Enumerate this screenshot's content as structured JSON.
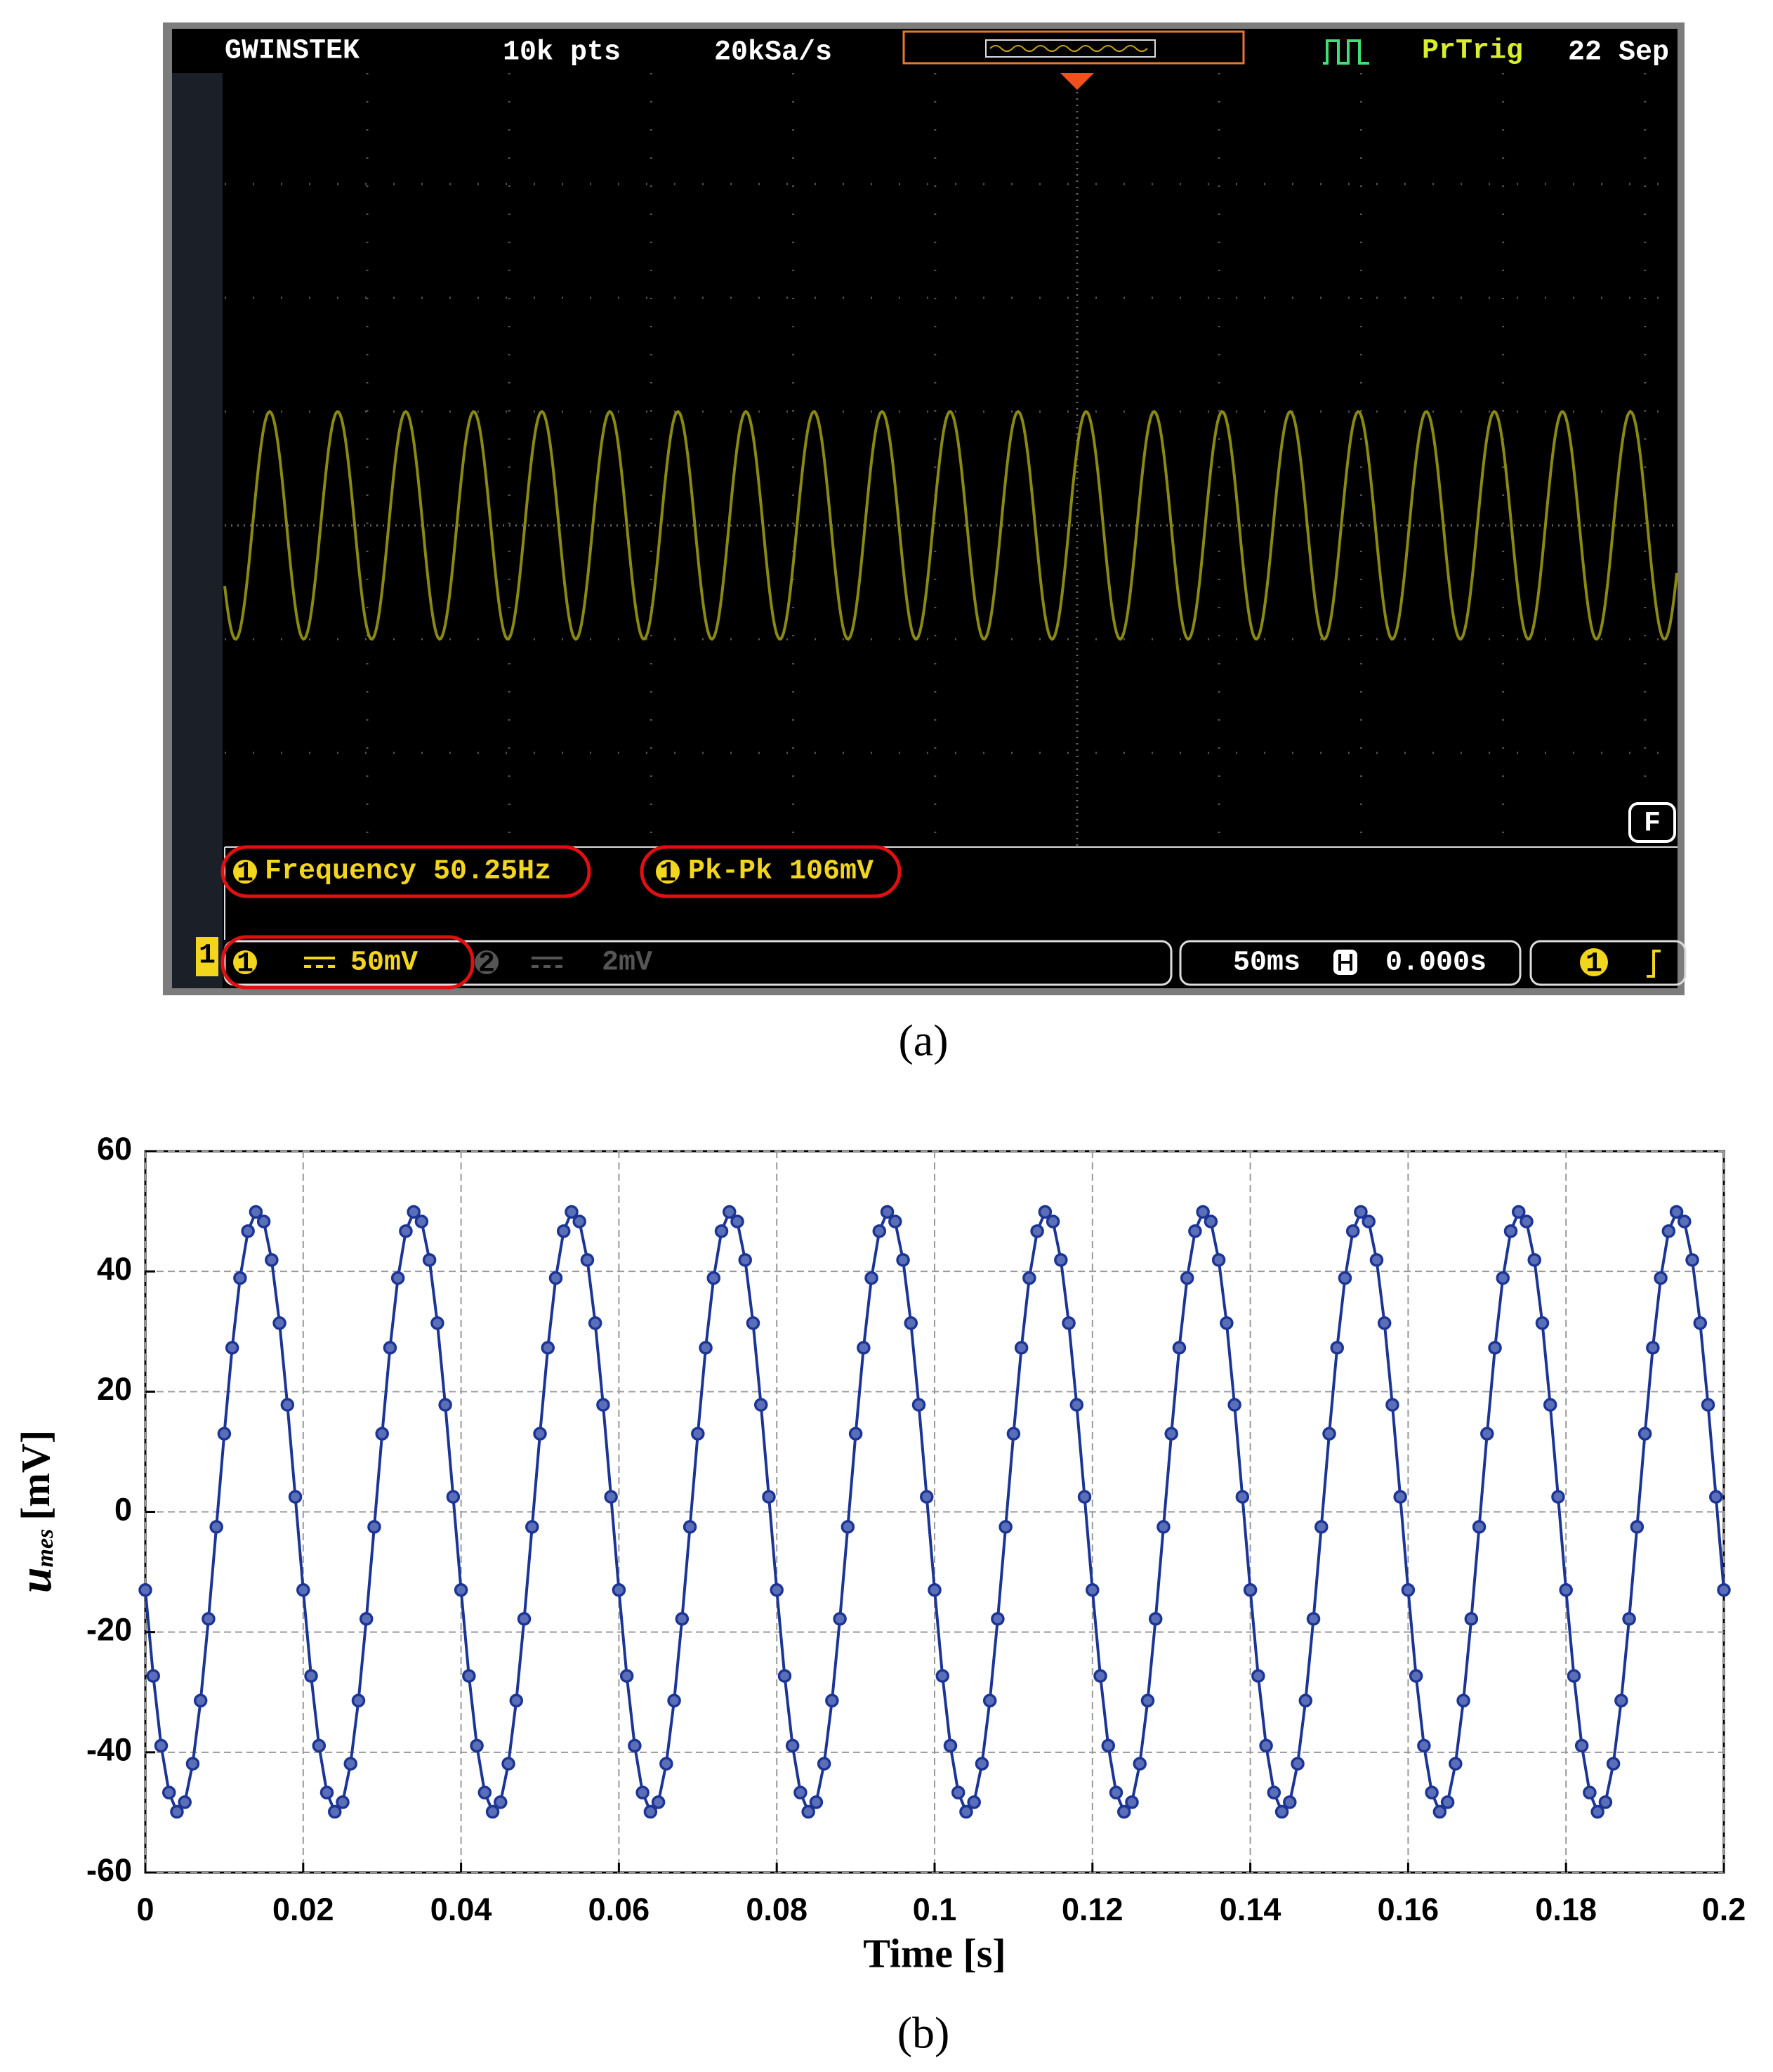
{
  "panel_a": {
    "brand": "GWINSTEK",
    "record_length": "10k pts",
    "sample_rate": "20kSa/s",
    "trigger_state": "PrTrig",
    "date": "22 Sep",
    "mode": "F",
    "measurements": [
      {
        "channel": "1",
        "label": "Frequency 50.25Hz"
      },
      {
        "channel": "1",
        "label": "Pk-Pk 106mV"
      }
    ],
    "channels": [
      {
        "number": "1",
        "scale": "50mV"
      },
      {
        "number": "2",
        "scale": "2mV"
      }
    ],
    "timebase": "50ms",
    "horizontal_position": "0.000s",
    "trigger_source": "1",
    "caption": "(a)"
  },
  "chart_data": {
    "type": "line",
    "caption": "(b)",
    "xlabel": "Time [s]",
    "ylabel_symbol": "u",
    "ylabel_subscript": "mes",
    "ylabel_unit": "[mV]",
    "xlim": [
      0,
      0.2
    ],
    "ylim": [
      -60,
      60
    ],
    "xticks": [
      0,
      0.02,
      0.04,
      0.06,
      0.08,
      0.1,
      0.12,
      0.14,
      0.16,
      0.18,
      0.2
    ],
    "yticks": [
      -60,
      -40,
      -20,
      0,
      20,
      40,
      60
    ],
    "grid": true,
    "markers": true,
    "x": [
      0,
      0.001,
      0.002,
      0.003,
      0.004,
      0.005,
      0.006,
      0.007,
      0.008,
      0.009,
      0.01,
      0.011,
      0.012,
      0.013,
      0.014,
      0.015,
      0.016,
      0.017,
      0.018,
      0.019,
      0.02,
      0.021,
      0.022,
      0.023,
      0.024,
      0.025,
      0.026,
      0.027,
      0.028,
      0.029,
      0.03,
      0.031,
      0.032,
      0.033,
      0.034,
      0.035,
      0.036,
      0.037,
      0.038,
      0.039,
      0.04,
      0.041,
      0.042,
      0.043,
      0.044,
      0.045,
      0.046,
      0.047,
      0.048,
      0.049,
      0.05,
      0.051,
      0.052,
      0.053,
      0.054,
      0.055,
      0.056,
      0.057,
      0.058,
      0.059,
      0.06,
      0.061,
      0.062,
      0.063,
      0.064,
      0.065,
      0.066,
      0.067,
      0.068,
      0.069,
      0.07,
      0.071,
      0.072,
      0.073,
      0.074,
      0.075,
      0.076,
      0.077,
      0.078,
      0.079,
      0.08,
      0.081,
      0.082,
      0.083,
      0.084,
      0.085,
      0.086,
      0.087,
      0.088,
      0.089,
      0.09,
      0.091,
      0.092,
      0.093,
      0.094,
      0.095,
      0.096,
      0.097,
      0.098,
      0.099,
      0.1,
      0.101,
      0.102,
      0.103,
      0.104,
      0.105,
      0.106,
      0.107,
      0.108,
      0.109,
      0.11,
      0.111,
      0.112,
      0.113,
      0.114,
      0.115,
      0.116,
      0.117,
      0.118,
      0.119,
      0.12,
      0.121,
      0.122,
      0.123,
      0.124,
      0.125,
      0.126,
      0.127,
      0.128,
      0.129,
      0.13,
      0.131,
      0.132,
      0.133,
      0.134,
      0.135,
      0.136,
      0.137,
      0.138,
      0.139,
      0.14,
      0.141,
      0.142,
      0.143,
      0.144,
      0.145,
      0.146,
      0.147,
      0.148,
      0.149,
      0.15,
      0.151,
      0.152,
      0.153,
      0.154,
      0.155,
      0.156,
      0.157,
      0.158,
      0.159,
      0.16,
      0.161,
      0.162,
      0.163,
      0.164,
      0.165,
      0.166,
      0.167,
      0.168,
      0.169,
      0.17,
      0.171,
      0.172,
      0.173,
      0.174,
      0.175,
      0.176,
      0.177,
      0.178,
      0.179,
      0.18,
      0.181,
      0.182,
      0.183,
      0.184,
      0.185,
      0.186,
      0.187,
      0.188,
      0.189,
      0.19,
      0.191,
      0.192,
      0.193,
      0.194,
      0.195,
      0.196,
      0.197,
      0.198,
      0.199,
      0.2
    ],
    "series": [
      {
        "name": "umes",
        "color": "#1c3595",
        "values": [
          -13,
          -27.3,
          -38.9,
          -46.7,
          -49.9,
          -48.3,
          -41.9,
          -31.4,
          -17.8,
          -2.5,
          13,
          27.3,
          38.9,
          46.7,
          49.9,
          48.3,
          41.9,
          31.4,
          17.8,
          2.5,
          -13,
          -27.3,
          -38.9,
          -46.7,
          -49.9,
          -48.3,
          -41.9,
          -31.4,
          -17.8,
          -2.5,
          13,
          27.3,
          38.9,
          46.7,
          49.9,
          48.3,
          41.9,
          31.4,
          17.8,
          2.5,
          -13,
          -27.3,
          -38.9,
          -46.7,
          -49.9,
          -48.3,
          -41.9,
          -31.4,
          -17.8,
          -2.5,
          13,
          27.3,
          38.9,
          46.7,
          49.9,
          48.3,
          41.9,
          31.4,
          17.8,
          2.5,
          -13,
          -27.3,
          -38.9,
          -46.7,
          -49.9,
          -48.3,
          -41.9,
          -31.4,
          -17.8,
          -2.5,
          13,
          27.3,
          38.9,
          46.7,
          49.9,
          48.3,
          41.9,
          31.4,
          17.8,
          2.5,
          -13,
          -27.3,
          -38.9,
          -46.7,
          -49.9,
          -48.3,
          -41.9,
          -31.4,
          -17.8,
          -2.5,
          13,
          27.3,
          38.9,
          46.7,
          49.9,
          48.3,
          41.9,
          31.4,
          17.8,
          2.5,
          -13,
          -27.3,
          -38.9,
          -46.7,
          -49.9,
          -48.3,
          -41.9,
          -31.4,
          -17.8,
          -2.5,
          13,
          27.3,
          38.9,
          46.7,
          49.9,
          48.3,
          41.9,
          31.4,
          17.8,
          2.5,
          -13,
          -27.3,
          -38.9,
          -46.7,
          -49.9,
          -48.3,
          -41.9,
          -31.4,
          -17.8,
          -2.5,
          13,
          27.3,
          38.9,
          46.7,
          49.9,
          48.3,
          41.9,
          31.4,
          17.8,
          2.5,
          -13,
          -27.3,
          -38.9,
          -46.7,
          -49.9,
          -48.3,
          -41.9,
          -31.4,
          -17.8,
          -2.5,
          13,
          27.3,
          38.9,
          46.7,
          49.9,
          48.3,
          41.9,
          31.4,
          17.8,
          2.5,
          -13,
          -27.3,
          -38.9,
          -46.7,
          -49.9,
          -48.3,
          -41.9,
          -31.4,
          -17.8,
          -2.5,
          13,
          27.3,
          38.9,
          46.7,
          49.9,
          48.3,
          41.9,
          31.4,
          17.8,
          2.5,
          -13,
          -27.3,
          -38.9,
          -46.7,
          -49.9,
          -48.3,
          -41.9,
          -31.4,
          -17.8,
          -2.5,
          13,
          27.3,
          38.9,
          46.7,
          49.9,
          48.3,
          41.9,
          31.4,
          17.8,
          2.5,
          -13
        ]
      }
    ]
  }
}
